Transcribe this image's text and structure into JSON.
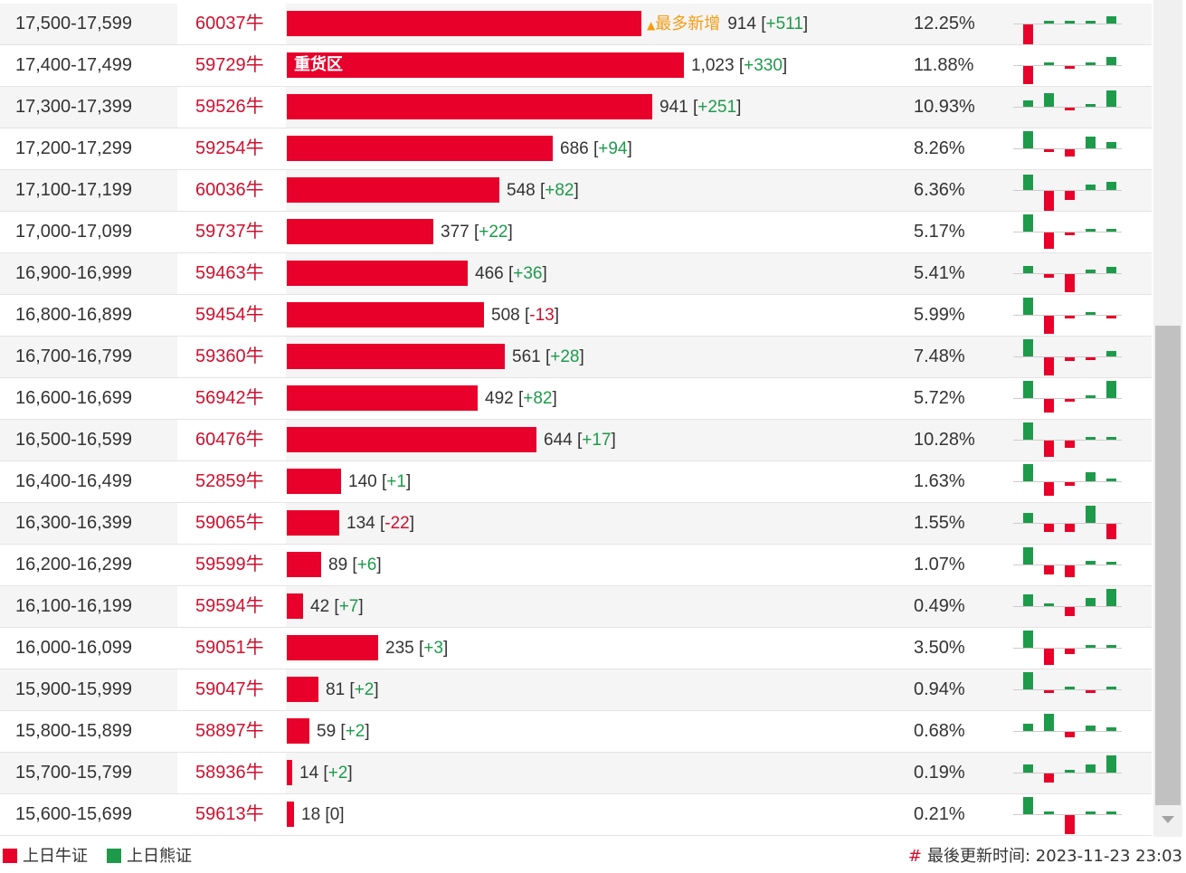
{
  "colors": {
    "bull": "#e8002a",
    "bear": "#1d9b4a",
    "hot_tag": "#f39c12"
  },
  "scale_max_count": 1023,
  "rows": [
    {
      "range": "17,500-17,599",
      "code": "60037牛",
      "count": 914,
      "count_text": "914",
      "change": "+511",
      "pct": "12.25%",
      "tag": "最多新增",
      "spark": [
        -1.0,
        0.15,
        0.1,
        0.1,
        0.35
      ]
    },
    {
      "range": "17,400-17,499",
      "code": "59729牛",
      "count": 1023,
      "count_text": "1,023",
      "change": "+330",
      "pct": "11.88%",
      "bar_label": "重货区",
      "spark": [
        -0.9,
        0.15,
        -0.08,
        0.1,
        0.4
      ]
    },
    {
      "range": "17,300-17,399",
      "code": "59526牛",
      "count": 941,
      "count_text": "941",
      "change": "+251",
      "pct": "10.93%",
      "spark": [
        0.3,
        0.7,
        -0.1,
        0.15,
        0.8
      ]
    },
    {
      "range": "17,200-17,299",
      "code": "59254牛",
      "count": 686,
      "count_text": "686",
      "change": "+94",
      "pct": "8.26%",
      "spark": [
        0.85,
        -0.1,
        -0.35,
        0.6,
        0.3
      ]
    },
    {
      "range": "17,100-17,199",
      "code": "60036牛",
      "count": 548,
      "count_text": "548",
      "change": "+82",
      "pct": "6.36%",
      "spark": [
        0.75,
        -1.0,
        -0.45,
        0.25,
        0.4
      ]
    },
    {
      "range": "17,000-17,099",
      "code": "59737牛",
      "count": 377,
      "count_text": "377",
      "change": "+22",
      "pct": "5.17%",
      "spark": [
        0.85,
        -0.8,
        -0.1,
        0.1,
        0.08
      ]
    },
    {
      "range": "16,900-16,999",
      "code": "59463牛",
      "count": 466,
      "count_text": "466",
      "change": "+36",
      "pct": "5.41%",
      "spark": [
        0.35,
        -0.2,
        -0.9,
        0.2,
        0.3
      ]
    },
    {
      "range": "16,800-16,899",
      "code": "59454牛",
      "count": 508,
      "count_text": "508",
      "change": "-13",
      "pct": "5.99%",
      "spark": [
        0.85,
        -0.9,
        -0.12,
        0.12,
        -0.08
      ]
    },
    {
      "range": "16,700-16,799",
      "code": "59360牛",
      "count": 561,
      "count_text": "561",
      "change": "+28",
      "pct": "7.48%",
      "spark": [
        0.85,
        -0.9,
        -0.2,
        -0.15,
        0.25
      ]
    },
    {
      "range": "16,600-16,699",
      "code": "56942牛",
      "count": 492,
      "count_text": "492",
      "change": "+82",
      "pct": "5.72%",
      "spark": [
        0.85,
        -0.7,
        -0.12,
        0.12,
        0.85
      ]
    },
    {
      "range": "16,500-16,599",
      "code": "60476牛",
      "count": 644,
      "count_text": "644",
      "change": "+17",
      "pct": "10.28%",
      "spark": [
        0.85,
        -0.8,
        -0.35,
        0.1,
        0.1
      ]
    },
    {
      "range": "16,400-16,499",
      "code": "52859牛",
      "count": 140,
      "count_text": "140",
      "change": "+1",
      "pct": "1.63%",
      "spark": [
        0.85,
        -0.7,
        -0.2,
        0.45,
        0.05
      ]
    },
    {
      "range": "16,300-16,399",
      "code": "59065牛",
      "count": 134,
      "count_text": "134",
      "change": "-22",
      "pct": "1.55%",
      "spark": [
        0.5,
        -0.4,
        -0.4,
        0.85,
        -0.75
      ]
    },
    {
      "range": "16,200-16,299",
      "code": "59599牛",
      "count": 89,
      "count_text": "89",
      "change": "+6",
      "pct": "1.07%",
      "spark": [
        0.85,
        -0.45,
        -0.6,
        0.2,
        0.15
      ]
    },
    {
      "range": "16,100-16,199",
      "code": "59594牛",
      "count": 42,
      "count_text": "42",
      "change": "+7",
      "pct": "0.49%",
      "spark": [
        0.6,
        0.0,
        -0.45,
        0.4,
        0.85
      ]
    },
    {
      "range": "16,000-16,099",
      "code": "59051牛",
      "count": 235,
      "count_text": "235",
      "change": "+3",
      "pct": "3.50%",
      "spark": [
        0.85,
        -0.8,
        -0.25,
        0.08,
        0.1
      ]
    },
    {
      "range": "15,900-15,999",
      "code": "59047牛",
      "count": 81,
      "count_text": "81",
      "change": "+2",
      "pct": "0.94%",
      "spark": [
        0.85,
        -0.15,
        0.05,
        -0.1,
        0.05
      ]
    },
    {
      "range": "15,800-15,899",
      "code": "58897牛",
      "count": 59,
      "count_text": "59",
      "change": "+2",
      "pct": "0.68%",
      "spark": [
        0.35,
        0.85,
        -0.25,
        0.25,
        0.2
      ]
    },
    {
      "range": "15,700-15,799",
      "code": "58936牛",
      "count": 14,
      "count_text": "14",
      "change": "+2",
      "pct": "0.19%",
      "spark": [
        0.4,
        -0.45,
        0.0,
        0.4,
        0.85
      ]
    },
    {
      "range": "15,600-15,699",
      "code": "59613牛",
      "count": 18,
      "count_text": "18",
      "change": "0",
      "pct": "0.21%",
      "spark": [
        0.85,
        0.0,
        -0.95,
        0.0,
        0.0
      ]
    }
  ],
  "footer": {
    "legend_bull": "上日牛证",
    "legend_bear": "上日熊证",
    "hash": "#",
    "updated_label": "最後更新时间:",
    "updated_time": "2023-11-23 23:03"
  }
}
